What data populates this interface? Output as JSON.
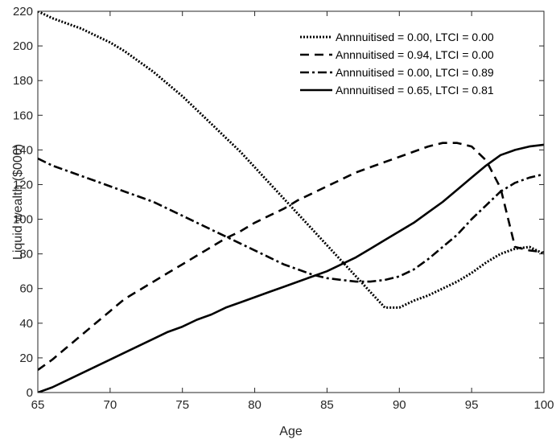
{
  "chart_data": {
    "type": "line",
    "title": "",
    "xlabel": "Age",
    "ylabel": "Liquid wealth ($000)",
    "xlim": [
      65,
      100
    ],
    "ylim": [
      0,
      220
    ],
    "x_ticks": [
      65,
      70,
      75,
      80,
      85,
      90,
      95,
      100
    ],
    "y_ticks": [
      0,
      20,
      40,
      60,
      80,
      100,
      120,
      140,
      160,
      180,
      200,
      220
    ],
    "grid": false,
    "legend_position": "top-right",
    "x": [
      65,
      66,
      67,
      68,
      69,
      70,
      71,
      72,
      73,
      74,
      75,
      76,
      77,
      78,
      79,
      80,
      81,
      82,
      83,
      84,
      85,
      86,
      87,
      88,
      89,
      90,
      91,
      92,
      93,
      94,
      95,
      96,
      97,
      98,
      99,
      100
    ],
    "series": [
      {
        "name": "Annnuitised = 0.00, LTCI = 0.00",
        "style": "dotted",
        "values": [
          220,
          216,
          213,
          210,
          206,
          202,
          197,
          191,
          185,
          178,
          171,
          163,
          155,
          147,
          139,
          130,
          121,
          112,
          103,
          94,
          85,
          76,
          67,
          58,
          49,
          49,
          53,
          56,
          60,
          64,
          69,
          75,
          80,
          83,
          84,
          80
        ]
      },
      {
        "name": "Annnuitised = 0.94, LTCI = 0.00",
        "style": "dashed",
        "values": [
          13,
          19,
          26,
          33,
          40,
          47,
          54,
          59,
          64,
          69,
          74,
          79,
          84,
          89,
          93,
          98,
          102,
          106,
          111,
          115,
          119,
          123,
          127,
          130,
          133,
          136,
          139,
          142,
          144,
          144,
          142,
          134,
          118,
          84,
          82,
          81
        ]
      },
      {
        "name": "Annnuitised = 0.00, LTCI = 0.89",
        "style": "dash-dot",
        "values": [
          135,
          131,
          128,
          125,
          122,
          119,
          116,
          113,
          110,
          106,
          102,
          98,
          94,
          90,
          86,
          82,
          78,
          74,
          71,
          68,
          66,
          65,
          64,
          64,
          65,
          67,
          71,
          77,
          84,
          91,
          100,
          108,
          116,
          121,
          124,
          126
        ]
      },
      {
        "name": "Annnuitised = 0.65, LTCI = 0.81",
        "style": "solid",
        "values": [
          0,
          3,
          7,
          11,
          15,
          19,
          23,
          27,
          31,
          35,
          38,
          42,
          45,
          49,
          52,
          55,
          58,
          61,
          64,
          67,
          70,
          74,
          78,
          83,
          88,
          93,
          98,
          104,
          110,
          117,
          124,
          131,
          137,
          140,
          142,
          143
        ]
      }
    ]
  }
}
